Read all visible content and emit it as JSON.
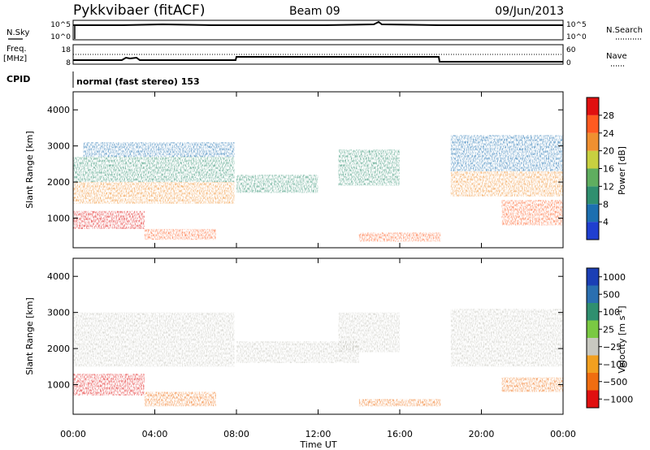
{
  "header": {
    "station": "Pykkvibaer (fitACF)",
    "beam": "Beam 09",
    "date": "09/Jun/2013"
  },
  "noise_panel": {
    "left_label": "N.Sky",
    "right_label": "N.Search",
    "left_ticks": [
      "10^5",
      "10^0"
    ],
    "right_ticks": [
      "10^5",
      "10^0"
    ]
  },
  "freq_panel": {
    "left_label_1": "Freq.",
    "left_label_2": "[MHz]",
    "right_label": "Nave",
    "left_ticks": [
      "18",
      "8"
    ],
    "right_ticks": [
      "60",
      "0"
    ],
    "cpid_label": "CPID",
    "cpid_text": "normal (fast stereo) 153"
  },
  "axes": {
    "x_ticks": [
      "00:00",
      "04:00",
      "08:00",
      "12:00",
      "16:00",
      "20:00",
      "00:00"
    ],
    "xlabel": "Time UT",
    "ylabel": "Slant Range [km]",
    "y_ticks": [
      "1000",
      "2000",
      "3000",
      "4000"
    ]
  },
  "power_colorbar": {
    "label": "Power [dB]",
    "ticks": [
      "4",
      "8",
      "12",
      "16",
      "20",
      "24",
      "28"
    ],
    "colors": [
      "#1f3fd0",
      "#1c6fb0",
      "#2f8f6f",
      "#5fae5f",
      "#c8d040",
      "#f09030",
      "#ff5a20",
      "#e01010"
    ]
  },
  "velocity_colorbar": {
    "label": "Velocity [m s",
    "label_sup": "-1",
    "label_end": "]",
    "ticks": [
      "1000",
      "500",
      "100",
      "25",
      "−25",
      "−100",
      "−500",
      "−1000"
    ],
    "colors": [
      "#1b3fb5",
      "#2a6fb0",
      "#2f8f6f",
      "#7ac943",
      "#c8c8c0",
      "#f2a020",
      "#f06d10",
      "#e01010"
    ]
  },
  "chart_data": [
    {
      "type": "heatmap",
      "title": "Power",
      "xlabel": "Time UT",
      "ylabel": "Slant Range [km]",
      "xlim": [
        0,
        24
      ],
      "ylim": [
        180,
        4500
      ],
      "colorbar": {
        "label": "Power [dB]",
        "range": [
          0,
          30
        ]
      },
      "regions": [
        {
          "t": [
            0,
            3.5
          ],
          "r": [
            700,
            1200
          ],
          "value": 28
        },
        {
          "t": [
            0,
            7.9
          ],
          "r": [
            1400,
            2000
          ],
          "value": 22
        },
        {
          "t": [
            0,
            7.9
          ],
          "r": [
            2000,
            2700
          ],
          "value": 10
        },
        {
          "t": [
            0.5,
            7.9
          ],
          "r": [
            2700,
            3100
          ],
          "value": 6
        },
        {
          "t": [
            3.5,
            7.0
          ],
          "r": [
            400,
            700
          ],
          "value": 24
        },
        {
          "t": [
            8.0,
            12.0
          ],
          "r": [
            1700,
            2200
          ],
          "value": 10
        },
        {
          "t": [
            13.0,
            16.0
          ],
          "r": [
            1900,
            2900
          ],
          "value": 8
        },
        {
          "t": [
            14.0,
            18.0
          ],
          "r": [
            350,
            600
          ],
          "value": 26
        },
        {
          "t": [
            18.5,
            24
          ],
          "r": [
            1600,
            2300
          ],
          "value": 22
        },
        {
          "t": [
            18.5,
            24
          ],
          "r": [
            2300,
            3300
          ],
          "value": 7
        },
        {
          "t": [
            21.0,
            24
          ],
          "r": [
            800,
            1500
          ],
          "value": 26
        }
      ]
    },
    {
      "type": "heatmap",
      "title": "Velocity",
      "xlabel": "Time UT",
      "ylabel": "Slant Range [km]",
      "xlim": [
        0,
        24
      ],
      "ylim": [
        180,
        4500
      ],
      "colorbar": {
        "label": "Velocity [m s-1]",
        "range": [
          -1000,
          1000
        ]
      },
      "regions": [
        {
          "t": [
            0,
            3.5
          ],
          "r": [
            700,
            1300
          ],
          "value": -700
        },
        {
          "t": [
            3.5,
            7.0
          ],
          "r": [
            400,
            800
          ],
          "value": -150
        },
        {
          "t": [
            0,
            7.9
          ],
          "r": [
            1500,
            3000
          ],
          "value": 0
        },
        {
          "t": [
            8.0,
            14.0
          ],
          "r": [
            1600,
            2200
          ],
          "value": 0
        },
        {
          "t": [
            13.0,
            16.0
          ],
          "r": [
            1900,
            3000
          ],
          "value": 0
        },
        {
          "t": [
            14.0,
            18.0
          ],
          "r": [
            400,
            600
          ],
          "value": -120
        },
        {
          "t": [
            18.5,
            24
          ],
          "r": [
            1500,
            3100
          ],
          "value": 0
        },
        {
          "t": [
            21.0,
            24
          ],
          "r": [
            800,
            1200
          ],
          "value": -400
        }
      ]
    },
    {
      "type": "line",
      "title": "N.Sky",
      "x": [
        0,
        24
      ],
      "values": [
        4.2,
        4.2
      ],
      "ylim": [
        0,
        5
      ]
    },
    {
      "type": "line",
      "title": "Freq.",
      "x": [
        0,
        8,
        8,
        18,
        18,
        24
      ],
      "values": [
        10,
        10,
        11.8,
        11.8,
        10,
        10
      ],
      "ylim": [
        8,
        18
      ]
    }
  ]
}
